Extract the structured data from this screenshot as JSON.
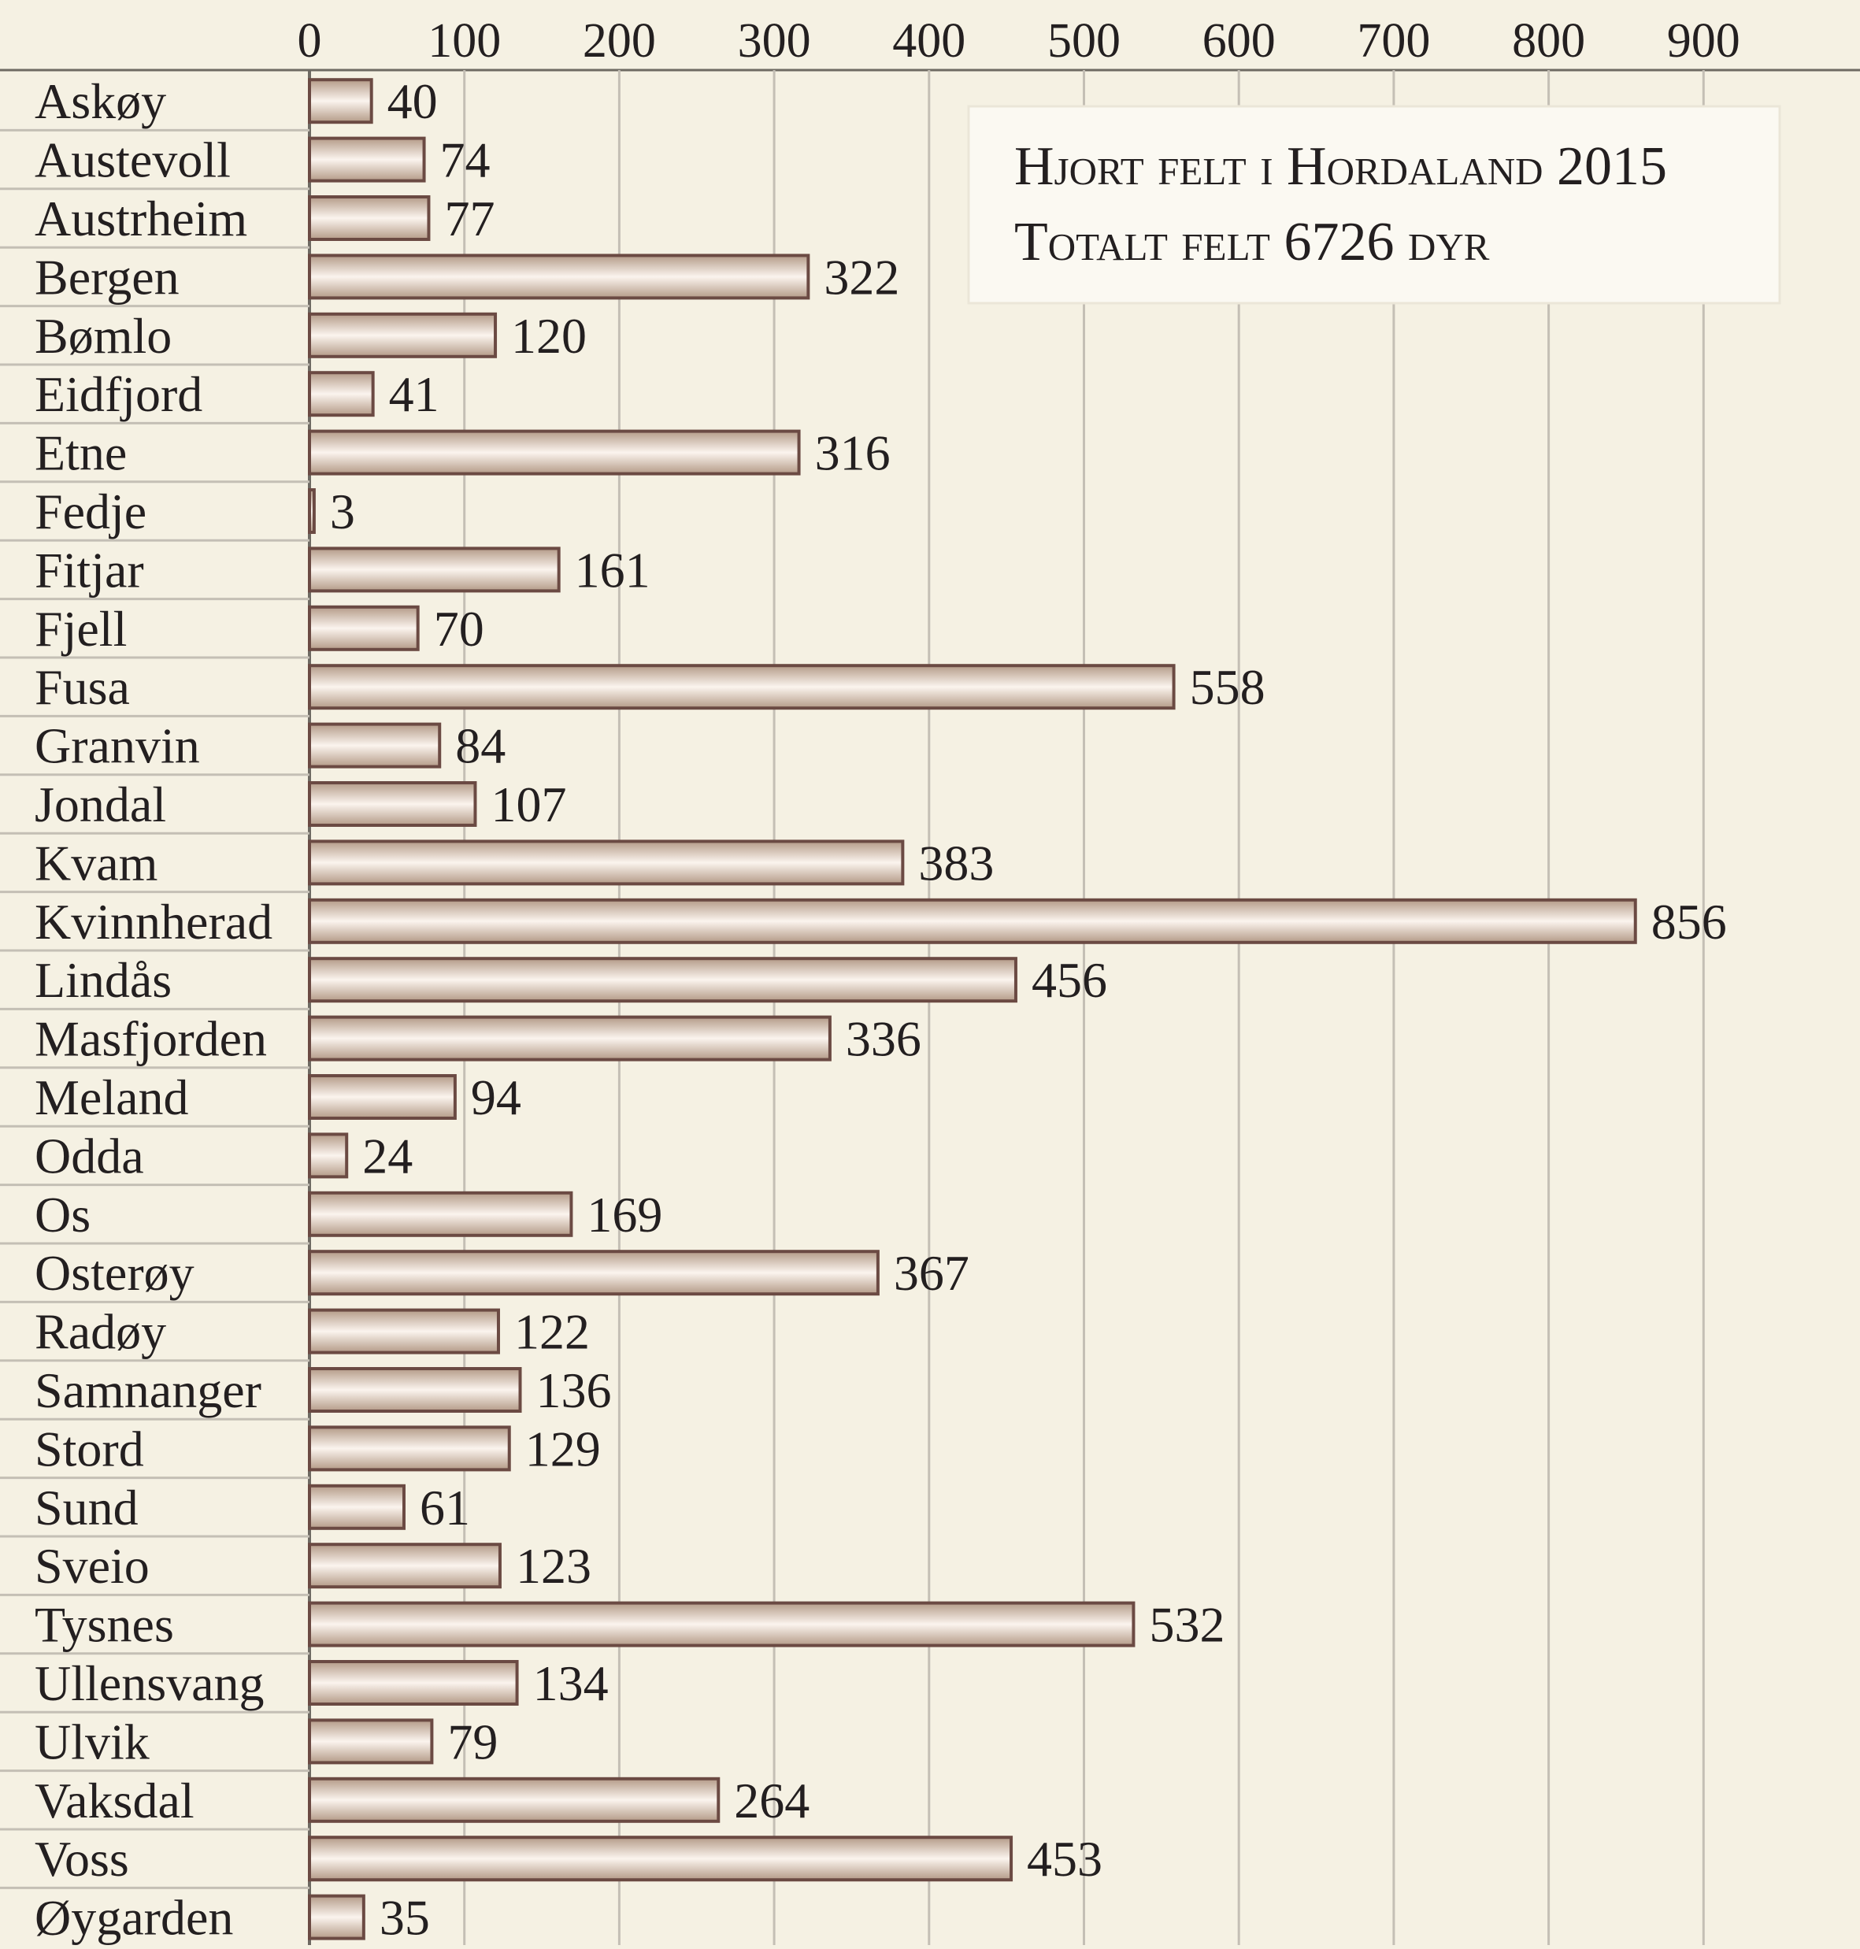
{
  "chart_data": {
    "type": "bar",
    "orientation": "horizontal",
    "title": "Hjort felt i Hordaland 2015",
    "subtitle": "Totalt felt 6726 dyr",
    "xlabel": "",
    "ylabel": "",
    "xlim": [
      0,
      900
    ],
    "ticks": [
      "0",
      "100",
      "200",
      "300",
      "400",
      "500",
      "600",
      "700",
      "800",
      "900"
    ],
    "grid": true,
    "axis_position": "top",
    "categories": [
      "Askøy",
      "Austevoll",
      "Austrheim",
      "Bergen",
      "Bømlo",
      "Eidfjord",
      "Etne",
      "Fedje",
      "Fitjar",
      "Fjell",
      "Fusa",
      "Granvin",
      "Jondal",
      "Kvam",
      "Kvinnherad",
      "Lindås",
      "Masfjorden",
      "Meland",
      "Odda",
      "Os",
      "Osterøy",
      "Radøy",
      "Samnanger",
      "Stord",
      "Sund",
      "Sveio",
      "Tysnes",
      "Ullensvang",
      "Ulvik",
      "Vaksdal",
      "Voss",
      "Øygarden"
    ],
    "values": [
      40,
      74,
      77,
      322,
      120,
      41,
      316,
      3,
      161,
      70,
      558,
      84,
      107,
      383,
      856,
      456,
      336,
      94,
      24,
      169,
      367,
      122,
      136,
      129,
      61,
      123,
      532,
      134,
      79,
      264,
      453,
      35
    ],
    "colors": {
      "background": "#f5f1e3",
      "bar_fill_light": "#fbf4ee",
      "bar_fill_dark": "#b49b88",
      "bar_stroke": "#6b4a43",
      "grid": "#c4bfb5",
      "text": "#231f20",
      "title_box": "#fbf9f2"
    }
  }
}
